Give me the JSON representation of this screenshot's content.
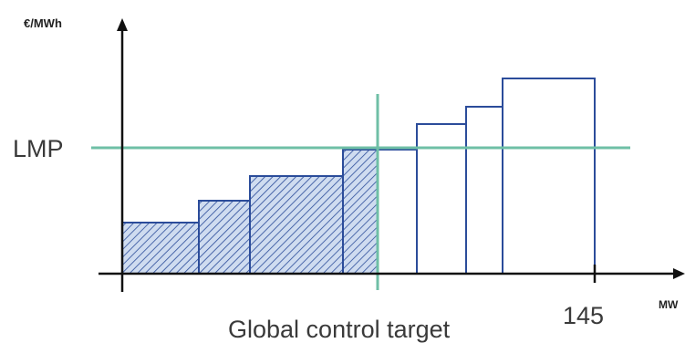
{
  "diagram": {
    "y_unit_label": "€/MWh",
    "x_unit_label": "MW",
    "lmp_label": "LMP",
    "tick_label": "145",
    "control_target_label": "Global control target",
    "colors": {
      "axis": "#111111",
      "step_outline": "#2b4c9a",
      "hatch_fill": "#cfdcf0",
      "hatch_line": "#2b4c9a",
      "lmp_line": "#6fbfa6"
    }
  }
}
